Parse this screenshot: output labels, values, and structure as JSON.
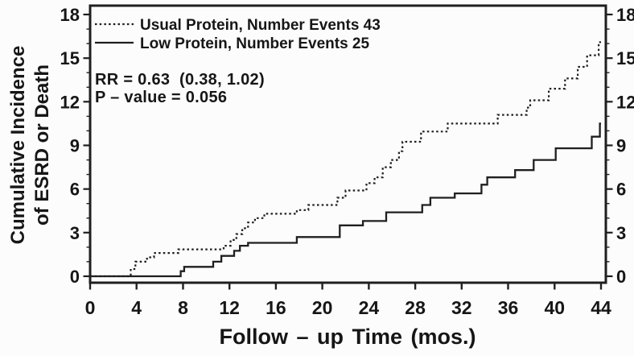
{
  "figure": {
    "background": "#fcfcfc",
    "ink_color": "#1f1f1f"
  },
  "chart_data": {
    "type": "line",
    "subtype": "step-cumulative-incidence",
    "title": "",
    "xlabel": "Follow – up Time  (mos.)",
    "ylabel_lines": [
      "Cumulative Incidence",
      "of ESRD or Death"
    ],
    "xlim": [
      0,
      44
    ],
    "ylim": [
      0,
      18
    ],
    "xticks": [
      0,
      4,
      8,
      12,
      16,
      20,
      24,
      28,
      32,
      36,
      40,
      44
    ],
    "yticks": [
      0,
      3,
      6,
      9,
      12,
      15,
      18
    ],
    "y_minor_step": 1,
    "grid": false,
    "legend_position": "top-left-inside",
    "series": [
      {
        "name": "Usual Protein, Number Events 43",
        "line_style": "dotted",
        "events": 43,
        "end_month": 44,
        "steps": [
          [
            3.5,
            0.5
          ],
          [
            3.9,
            1.0
          ],
          [
            4.9,
            1.3
          ],
          [
            5.5,
            1.6
          ],
          [
            7.6,
            1.85
          ],
          [
            11.5,
            2.1
          ],
          [
            12.1,
            2.5
          ],
          [
            12.6,
            2.9
          ],
          [
            13.1,
            3.3
          ],
          [
            13.6,
            3.7
          ],
          [
            14.2,
            4.0
          ],
          [
            15.0,
            4.3
          ],
          [
            17.8,
            4.55
          ],
          [
            18.8,
            4.9
          ],
          [
            21.3,
            5.4
          ],
          [
            22.0,
            5.9
          ],
          [
            23.8,
            6.4
          ],
          [
            24.5,
            6.8
          ],
          [
            25.2,
            7.5
          ],
          [
            25.9,
            8.0
          ],
          [
            26.6,
            8.6
          ],
          [
            26.9,
            9.25
          ],
          [
            28.5,
            9.95
          ],
          [
            30.8,
            10.5
          ],
          [
            35.1,
            11.1
          ],
          [
            37.6,
            11.6
          ],
          [
            37.9,
            12.1
          ],
          [
            39.5,
            12.9
          ],
          [
            40.9,
            13.6
          ],
          [
            42.0,
            14.4
          ],
          [
            42.8,
            15.2
          ],
          [
            43.8,
            16.1
          ]
        ]
      },
      {
        "name": "Low Protein, Number Events 25",
        "line_style": "solid",
        "events": 25,
        "end_month": 44,
        "steps": [
          [
            7.8,
            0.35
          ],
          [
            8.1,
            0.65
          ],
          [
            10.6,
            1.0
          ],
          [
            11.3,
            1.4
          ],
          [
            12.4,
            1.75
          ],
          [
            12.9,
            2.1
          ],
          [
            13.6,
            2.3
          ],
          [
            17.8,
            2.7
          ],
          [
            21.5,
            3.5
          ],
          [
            23.5,
            3.8
          ],
          [
            25.5,
            4.4
          ],
          [
            28.6,
            4.9
          ],
          [
            29.3,
            5.4
          ],
          [
            31.4,
            5.7
          ],
          [
            33.7,
            6.3
          ],
          [
            34.2,
            6.8
          ],
          [
            36.6,
            7.3
          ],
          [
            38.2,
            8.0
          ],
          [
            40.1,
            8.8
          ],
          [
            43.2,
            9.6
          ],
          [
            43.9,
            10.5
          ]
        ]
      }
    ],
    "annotations": [
      "RR = 0.63  (0.38, 1.02)",
      "P – value = 0.056"
    ]
  }
}
